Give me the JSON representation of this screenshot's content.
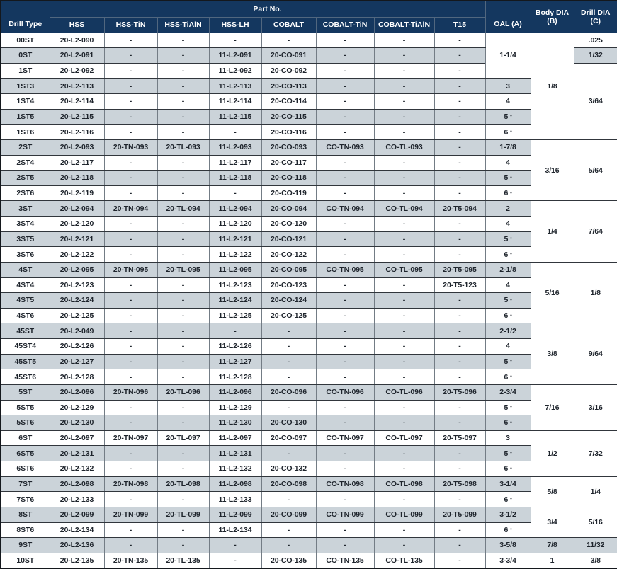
{
  "table": {
    "header": {
      "drill_type": "Drill Type",
      "part_no_group": "Part No.",
      "part_columns": [
        "HSS",
        "HSS-TiN",
        "HSS-TiAlN",
        "HSS-LH",
        "COBALT",
        "COBALT-TiN",
        "COBALT-TiAlN",
        "T15"
      ],
      "oal": "OAL (A)",
      "body_dia_line1": "Body DIA",
      "body_dia_line2": "(B)",
      "drill_dia_line1": "Drill DIA",
      "drill_dia_line2": "(C)"
    },
    "colors": {
      "header_bg": "#14375F",
      "header_text": "#FFFFFF",
      "stripe": "#CBD3D9",
      "row_white": "#FFFFFF",
      "text": "#1E242C",
      "grid_h": "#31363C",
      "grid_v": "#737C85",
      "header_grid": "#51677F",
      "frame": "#14181D"
    },
    "rows": [
      {
        "type": "00ST",
        "parts": [
          "20-L2-090",
          "-",
          "-",
          "-",
          "-",
          "-",
          "-",
          "-"
        ]
      },
      {
        "type": "0ST",
        "parts": [
          "20-L2-091",
          "-",
          "-",
          "11-L2-091",
          "20-CO-091",
          "-",
          "-",
          "-"
        ]
      },
      {
        "type": "1ST",
        "parts": [
          "20-L2-092",
          "-",
          "-",
          "11-L2-092",
          "20-CO-092",
          "-",
          "-",
          "-"
        ]
      },
      {
        "type": "1ST3",
        "parts": [
          "20-L2-113",
          "-",
          "-",
          "11-L2-113",
          "20-CO-113",
          "-",
          "-",
          "-"
        ]
      },
      {
        "type": "1ST4",
        "parts": [
          "20-L2-114",
          "-",
          "-",
          "11-L2-114",
          "20-CO-114",
          "-",
          "-",
          "-"
        ]
      },
      {
        "type": "1ST5",
        "parts": [
          "20-L2-115",
          "-",
          "-",
          "11-L2-115",
          "20-CO-115",
          "-",
          "-",
          "-"
        ]
      },
      {
        "type": "1ST6",
        "parts": [
          "20-L2-116",
          "-",
          "-",
          "-",
          "20-CO-116",
          "-",
          "-",
          "-"
        ]
      },
      {
        "type": "2ST",
        "parts": [
          "20-L2-093",
          "20-TN-093",
          "20-TL-093",
          "11-L2-093",
          "20-CO-093",
          "CO-TN-093",
          "CO-TL-093",
          "-"
        ]
      },
      {
        "type": "2ST4",
        "parts": [
          "20-L2-117",
          "-",
          "-",
          "11-L2-117",
          "20-CO-117",
          "-",
          "-",
          "-"
        ]
      },
      {
        "type": "2ST5",
        "parts": [
          "20-L2-118",
          "-",
          "-",
          "11-L2-118",
          "20-CO-118",
          "-",
          "-",
          "-"
        ]
      },
      {
        "type": "2ST6",
        "parts": [
          "20-L2-119",
          "-",
          "-",
          "-",
          "20-CO-119",
          "-",
          "-",
          "-"
        ]
      },
      {
        "type": "3ST",
        "parts": [
          "20-L2-094",
          "20-TN-094",
          "20-TL-094",
          "11-L2-094",
          "20-CO-094",
          "CO-TN-094",
          "CO-TL-094",
          "20-T5-094"
        ]
      },
      {
        "type": "3ST4",
        "parts": [
          "20-L2-120",
          "-",
          "-",
          "11-L2-120",
          "20-CO-120",
          "-",
          "-",
          "-"
        ]
      },
      {
        "type": "3ST5",
        "parts": [
          "20-L2-121",
          "-",
          "-",
          "11-L2-121",
          "20-CO-121",
          "-",
          "-",
          "-"
        ]
      },
      {
        "type": "3ST6",
        "parts": [
          "20-L2-122",
          "-",
          "-",
          "11-L2-122",
          "20-CO-122",
          "-",
          "-",
          "-"
        ]
      },
      {
        "type": "4ST",
        "parts": [
          "20-L2-095",
          "20-TN-095",
          "20-TL-095",
          "11-L2-095",
          "20-CO-095",
          "CO-TN-095",
          "CO-TL-095",
          "20-T5-095"
        ]
      },
      {
        "type": "4ST4",
        "parts": [
          "20-L2-123",
          "-",
          "-",
          "11-L2-123",
          "20-CO-123",
          "-",
          "-",
          "20-T5-123"
        ]
      },
      {
        "type": "4ST5",
        "parts": [
          "20-L2-124",
          "-",
          "-",
          "11-L2-124",
          "20-CO-124",
          "-",
          "-",
          "-"
        ]
      },
      {
        "type": "4ST6",
        "parts": [
          "20-L2-125",
          "-",
          "-",
          "11-L2-125",
          "20-CO-125",
          "-",
          "-",
          "-"
        ]
      },
      {
        "type": "45ST",
        "parts": [
          "20-L2-049",
          "-",
          "-",
          "-",
          "-",
          "-",
          "-",
          "-"
        ]
      },
      {
        "type": "45ST4",
        "parts": [
          "20-L2-126",
          "-",
          "-",
          "11-L2-126",
          "-",
          "-",
          "-",
          "-"
        ]
      },
      {
        "type": "45ST5",
        "parts": [
          "20-L2-127",
          "-",
          "-",
          "11-L2-127",
          "-",
          "-",
          "-",
          "-"
        ]
      },
      {
        "type": "45ST6",
        "parts": [
          "20-L2-128",
          "-",
          "-",
          "11-L2-128",
          "-",
          "-",
          "-",
          "-"
        ]
      },
      {
        "type": "5ST",
        "parts": [
          "20-L2-096",
          "20-TN-096",
          "20-TL-096",
          "11-L2-096",
          "20-CO-096",
          "CO-TN-096",
          "CO-TL-096",
          "20-T5-096"
        ]
      },
      {
        "type": "5ST5",
        "parts": [
          "20-L2-129",
          "-",
          "-",
          "11-L2-129",
          "-",
          "-",
          "-",
          "-"
        ]
      },
      {
        "type": "5ST6",
        "parts": [
          "20-L2-130",
          "-",
          "-",
          "11-L2-130",
          "20-CO-130",
          "-",
          "-",
          "-"
        ]
      },
      {
        "type": "6ST",
        "parts": [
          "20-L2-097",
          "20-TN-097",
          "20-TL-097",
          "11-L2-097",
          "20-CO-097",
          "CO-TN-097",
          "CO-TL-097",
          "20-T5-097"
        ]
      },
      {
        "type": "6ST5",
        "parts": [
          "20-L2-131",
          "-",
          "-",
          "11-L2-131",
          "-",
          "-",
          "-",
          "-"
        ]
      },
      {
        "type": "6ST6",
        "parts": [
          "20-L2-132",
          "-",
          "-",
          "11-L2-132",
          "20-CO-132",
          "-",
          "-",
          "-"
        ]
      },
      {
        "type": "7ST",
        "parts": [
          "20-L2-098",
          "20-TN-098",
          "20-TL-098",
          "11-L2-098",
          "20-CO-098",
          "CO-TN-098",
          "CO-TL-098",
          "20-T5-098"
        ]
      },
      {
        "type": "7ST6",
        "parts": [
          "20-L2-133",
          "-",
          "-",
          "11-L2-133",
          "-",
          "-",
          "-",
          "-"
        ]
      },
      {
        "type": "8ST",
        "parts": [
          "20-L2-099",
          "20-TN-099",
          "20-TL-099",
          "11-L2-099",
          "20-CO-099",
          "CO-TN-099",
          "CO-TL-099",
          "20-T5-099"
        ]
      },
      {
        "type": "8ST6",
        "parts": [
          "20-L2-134",
          "-",
          "-",
          "11-L2-134",
          "-",
          "-",
          "-",
          "-"
        ]
      },
      {
        "type": "9ST",
        "parts": [
          "20-L2-136",
          "-",
          "-",
          "-",
          "-",
          "-",
          "-",
          "-"
        ]
      },
      {
        "type": "10ST",
        "parts": [
          "20-L2-135",
          "20-TN-135",
          "20-TL-135",
          "-",
          "20-CO-135",
          "CO-TN-135",
          "CO-TL-135",
          "-"
        ]
      }
    ],
    "oal_cells": [
      {
        "start": 0,
        "span": 3,
        "text": "1-1/4"
      },
      {
        "start": 3,
        "span": 1,
        "text": "3"
      },
      {
        "start": 4,
        "span": 1,
        "text": "4"
      },
      {
        "start": 5,
        "span": 1,
        "text": "5",
        "dot": true
      },
      {
        "start": 6,
        "span": 1,
        "text": "6",
        "dot": true
      },
      {
        "start": 7,
        "span": 1,
        "text": "1-7/8"
      },
      {
        "start": 8,
        "span": 1,
        "text": "4"
      },
      {
        "start": 9,
        "span": 1,
        "text": "5",
        "dot": true
      },
      {
        "start": 10,
        "span": 1,
        "text": "6",
        "dot": true
      },
      {
        "start": 11,
        "span": 1,
        "text": "2"
      },
      {
        "start": 12,
        "span": 1,
        "text": "4"
      },
      {
        "start": 13,
        "span": 1,
        "text": "5",
        "dot": true
      },
      {
        "start": 14,
        "span": 1,
        "text": "6",
        "dot": true
      },
      {
        "start": 15,
        "span": 1,
        "text": "2-1/8"
      },
      {
        "start": 16,
        "span": 1,
        "text": "4"
      },
      {
        "start": 17,
        "span": 1,
        "text": "5",
        "dot": true
      },
      {
        "start": 18,
        "span": 1,
        "text": "6",
        "dot": true
      },
      {
        "start": 19,
        "span": 1,
        "text": "2-1/2"
      },
      {
        "start": 20,
        "span": 1,
        "text": "4"
      },
      {
        "start": 21,
        "span": 1,
        "text": "5",
        "dot": true
      },
      {
        "start": 22,
        "span": 1,
        "text": "6",
        "dot": true
      },
      {
        "start": 23,
        "span": 1,
        "text": "2-3/4"
      },
      {
        "start": 24,
        "span": 1,
        "text": "5",
        "dot": true
      },
      {
        "start": 25,
        "span": 1,
        "text": "6",
        "dot": true
      },
      {
        "start": 26,
        "span": 1,
        "text": "3"
      },
      {
        "start": 27,
        "span": 1,
        "text": "5",
        "dot": true
      },
      {
        "start": 28,
        "span": 1,
        "text": "6",
        "dot": true
      },
      {
        "start": 29,
        "span": 1,
        "text": "3-1/4"
      },
      {
        "start": 30,
        "span": 1,
        "text": "6",
        "dot": true
      },
      {
        "start": 31,
        "span": 1,
        "text": "3-1/2"
      },
      {
        "start": 32,
        "span": 1,
        "text": "6",
        "dot": true
      },
      {
        "start": 33,
        "span": 1,
        "text": "3-5/8"
      },
      {
        "start": 34,
        "span": 1,
        "text": "3-3/4"
      }
    ],
    "body_dia_cells": [
      {
        "start": 0,
        "span": 7,
        "text": "1/8"
      },
      {
        "start": 7,
        "span": 4,
        "text": "3/16"
      },
      {
        "start": 11,
        "span": 4,
        "text": "1/4"
      },
      {
        "start": 15,
        "span": 4,
        "text": "5/16"
      },
      {
        "start": 19,
        "span": 4,
        "text": "3/8"
      },
      {
        "start": 23,
        "span": 3,
        "text": "7/16"
      },
      {
        "start": 26,
        "span": 3,
        "text": "1/2"
      },
      {
        "start": 29,
        "span": 2,
        "text": "5/8"
      },
      {
        "start": 31,
        "span": 2,
        "text": "3/4"
      },
      {
        "start": 33,
        "span": 1,
        "text": "7/8"
      },
      {
        "start": 34,
        "span": 1,
        "text": "1"
      }
    ],
    "drill_dia_cells": [
      {
        "start": 0,
        "span": 1,
        "text": ".025"
      },
      {
        "start": 1,
        "span": 1,
        "text": "1/32"
      },
      {
        "start": 2,
        "span": 5,
        "text": "3/64"
      },
      {
        "start": 7,
        "span": 4,
        "text": "5/64"
      },
      {
        "start": 11,
        "span": 4,
        "text": "7/64"
      },
      {
        "start": 15,
        "span": 4,
        "text": "1/8"
      },
      {
        "start": 19,
        "span": 4,
        "text": "9/64"
      },
      {
        "start": 23,
        "span": 3,
        "text": "3/16"
      },
      {
        "start": 26,
        "span": 3,
        "text": "7/32"
      },
      {
        "start": 29,
        "span": 2,
        "text": "1/4"
      },
      {
        "start": 31,
        "span": 2,
        "text": "5/16"
      },
      {
        "start": 33,
        "span": 1,
        "text": "11/32"
      },
      {
        "start": 34,
        "span": 1,
        "text": "3/8"
      }
    ]
  }
}
